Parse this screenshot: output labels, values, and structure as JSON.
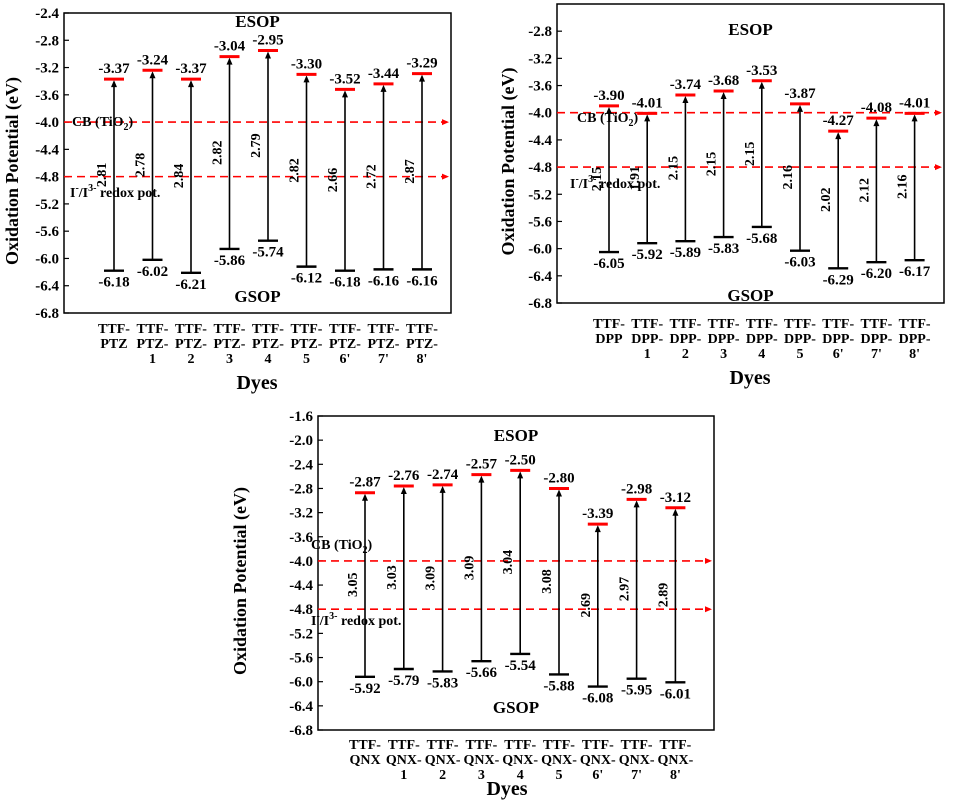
{
  "chart_data": [
    {
      "type": "energy-level diagram",
      "ylabel": "Oxidation Potential (eV)",
      "xlabel": "Dyes",
      "ylim": [
        -6.8,
        -2.4
      ],
      "yticks": [
        -2.4,
        -2.8,
        -3.2,
        -3.6,
        -4.0,
        -4.4,
        -4.8,
        -5.2,
        -5.6,
        -6.0,
        -6.4,
        -6.8
      ],
      "categories": [
        [
          "TTF-",
          "PTZ"
        ],
        [
          "TTF-",
          "PTZ-",
          "1"
        ],
        [
          "TTF-",
          "PTZ-",
          "2"
        ],
        [
          "TTF-",
          "PTZ-",
          "3"
        ],
        [
          "TTF-",
          "PTZ-",
          "4"
        ],
        [
          "TTF-",
          "PTZ-",
          "5"
        ],
        [
          "TTF-",
          "PTZ-",
          "6'"
        ],
        [
          "TTF-",
          "PTZ-",
          "7'"
        ],
        [
          "TTF-",
          "PTZ-",
          "8'"
        ]
      ],
      "esop": [
        -3.37,
        -3.24,
        -3.37,
        -3.04,
        -2.95,
        -3.3,
        -3.52,
        -3.44,
        -3.29
      ],
      "esop_labels": [
        "-3.37",
        "-3.24",
        "-3.37",
        "-3.04",
        "-2.95",
        "-3.30",
        "-3.52",
        "-3.44",
        "-3.29"
      ],
      "gsop": [
        -6.18,
        -6.02,
        -6.21,
        -5.86,
        -5.74,
        -6.12,
        -6.18,
        -6.16,
        -6.16
      ],
      "gsop_labels": [
        "-6.18",
        "-6.02",
        "-6.21",
        "-5.86",
        "-5.74",
        "-6.12",
        "-6.18",
        "-6.16",
        "-6.16"
      ],
      "gaps": [
        "2.81",
        "2.78",
        "2.84",
        "2.82",
        "2.79",
        "2.82",
        "2.66",
        "2.72",
        "2.87"
      ],
      "cb_value": -4.0,
      "redox_value": -4.8,
      "esop_title": "ESOP",
      "gsop_title": "GSOP",
      "cb_label": "CB (TiO",
      "cb_sub": "2",
      "cb_close": ")",
      "redox_pre": "I",
      "redox_sup1": "-",
      "redox_mid": "/I",
      "redox_sup2": "3-",
      "redox_post": " redox pot."
    },
    {
      "type": "energy-level diagram",
      "ylabel": "Oxidation Potential (eV)",
      "xlabel": "Dyes",
      "ylim": [
        -6.8,
        -2.4
      ],
      "yticks": [
        -2.8,
        -3.2,
        -3.6,
        -4.0,
        -4.4,
        -4.8,
        -5.2,
        -5.6,
        -6.0,
        -6.4,
        -6.8
      ],
      "categories": [
        [
          "TTF-",
          "DPP"
        ],
        [
          "TTF-",
          "DPP-",
          "1"
        ],
        [
          "TTF-",
          "DPP-",
          "2"
        ],
        [
          "TTF-",
          "DPP-",
          "3"
        ],
        [
          "TTF-",
          "DPP-",
          "4"
        ],
        [
          "TTF-",
          "DPP-",
          "5"
        ],
        [
          "TTF-",
          "DPP-",
          "6'"
        ],
        [
          "TTF-",
          "DPP-",
          "7'"
        ],
        [
          "TTF-",
          "DPP-",
          "8'"
        ]
      ],
      "esop": [
        -3.9,
        -4.01,
        -3.74,
        -3.68,
        -3.53,
        -3.87,
        -4.27,
        -4.08,
        -4.01
      ],
      "esop_labels": [
        "-3.90",
        "-4.01",
        "-3.74",
        "-3.68",
        "-3.53",
        "-3.87",
        "-4.27",
        "-4.08",
        "-4.01"
      ],
      "gsop": [
        -6.05,
        -5.92,
        -5.89,
        -5.83,
        -5.68,
        -6.03,
        -6.29,
        -6.2,
        -6.17
      ],
      "gsop_labels": [
        "-6.05",
        "-5.92",
        "-5.89",
        "-5.83",
        "-5.68",
        "-6.03",
        "-6.29",
        "-6.20",
        "-6.17"
      ],
      "gaps": [
        "2.15",
        "1.91",
        "2.15",
        "2.15",
        "2.15",
        "2.16",
        "2.02",
        "2.12",
        "2.16"
      ],
      "cb_value": -4.0,
      "redox_value": -4.8,
      "esop_title": "ESOP",
      "gsop_title": "GSOP",
      "cb_label": "CB (TiO",
      "cb_sub": "2",
      "cb_close": ")",
      "redox_pre": "I",
      "redox_sup1": "-",
      "redox_mid": "/I",
      "redox_sup2": "3-",
      "redox_post": " redox pot."
    },
    {
      "type": "energy-level diagram",
      "ylabel": "Oxidation Potential (eV)",
      "xlabel": "Dyes",
      "ylim": [
        -6.8,
        -1.6
      ],
      "yticks": [
        -1.6,
        -2.0,
        -2.4,
        -2.8,
        -3.2,
        -3.6,
        -4.0,
        -4.4,
        -4.8,
        -5.2,
        -5.6,
        -6.0,
        -6.4,
        -6.8
      ],
      "categories": [
        [
          "TTF-",
          "QNX"
        ],
        [
          "TTF-",
          "QNX-",
          "1"
        ],
        [
          "TTF-",
          "QNX-",
          "2"
        ],
        [
          "TTF-",
          "QNX-",
          "3"
        ],
        [
          "TTF-",
          "QNX-",
          "4"
        ],
        [
          "TTF-",
          "QNX-",
          "5"
        ],
        [
          "TTF-",
          "QNX-",
          "6'"
        ],
        [
          "TTF-",
          "QNX-",
          "7'"
        ],
        [
          "TTF-",
          "QNX-",
          "8'"
        ]
      ],
      "esop": [
        -2.87,
        -2.76,
        -2.74,
        -2.57,
        -2.5,
        -2.8,
        -3.39,
        -2.98,
        -3.12
      ],
      "esop_labels": [
        "-2.87",
        "-2.76",
        "-2.74",
        "-2.57",
        "-2.50",
        "-2.80",
        "-3.39",
        "-2.98",
        "-3.12"
      ],
      "gsop": [
        -5.92,
        -5.79,
        -5.83,
        -5.66,
        -5.54,
        -5.88,
        -6.08,
        -5.95,
        -6.01
      ],
      "gsop_labels": [
        "-5.92",
        "-5.79",
        "-5.83",
        "-5.66",
        "-5.54",
        "-5.88",
        "-6.08",
        "-5.95",
        "-6.01"
      ],
      "gaps": [
        "3.05",
        "3.03",
        "3.09",
        "3.09",
        "3.04",
        "3.08",
        "2.69",
        "2.97",
        "2.89"
      ],
      "cb_value": -4.0,
      "redox_value": -4.8,
      "esop_title": "ESOP",
      "gsop_title": "GSOP",
      "cb_label": "CB (TiO",
      "cb_sub": "2",
      "cb_close": ")",
      "redox_pre": "I",
      "redox_sup1": "-",
      "redox_mid": "/I",
      "redox_sup2": "3-",
      "redox_post": " redox pot."
    }
  ],
  "colors": {
    "esop_bar": "#ff0000",
    "reference_line": "#ff0000",
    "gsop_bar": "#000000",
    "axis": "#000000"
  }
}
